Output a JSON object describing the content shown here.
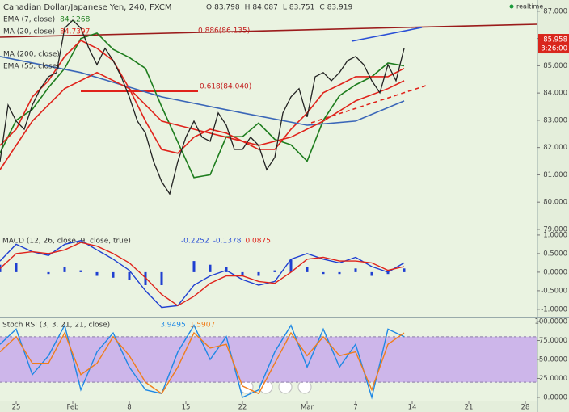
{
  "header": {
    "title": "Canadian Dollar/Japanese Yen, 240, FXCM",
    "ohlc": [
      {
        "label": "O",
        "value": 83.798
      },
      {
        "label": "H",
        "value": 84.087
      },
      {
        "label": "L",
        "value": 83.751
      },
      {
        "label": "C",
        "value": 83.919
      }
    ],
    "status": "realtime"
  },
  "chart_data": [
    {
      "type": "line",
      "xlim": [
        23,
        89.5
      ],
      "ylim": [
        78.88,
        87.41
      ],
      "yticks": [
        {
          "value": 79,
          "label": "79.000"
        },
        {
          "value": 80,
          "label": "80.000"
        },
        {
          "value": 81,
          "label": "81.000"
        },
        {
          "value": 82,
          "label": "82.000"
        },
        {
          "value": 83,
          "label": "83.000"
        },
        {
          "value": 84,
          "label": "84.000"
        },
        {
          "value": 85,
          "label": "85.000"
        },
        {
          "value": 86,
          "label": "86.000"
        },
        {
          "value": 87,
          "label": "87.000"
        }
      ],
      "color": "#222222",
      "x": [
        23,
        24,
        25,
        26,
        27,
        28,
        29,
        30,
        31,
        32,
        33,
        34,
        35,
        36,
        37,
        38,
        39,
        40,
        41,
        42,
        43,
        44,
        45,
        46,
        47,
        48,
        49,
        50,
        51,
        52,
        53,
        54,
        55,
        56,
        57,
        58,
        59,
        60,
        61,
        62,
        63,
        64,
        65,
        66,
        67,
        68,
        69,
        70,
        71,
        72,
        73
      ],
      "values": [
        81.49,
        83.56,
        82.97,
        82.67,
        83.56,
        84.16,
        84.6,
        84.75,
        86.38,
        86.67,
        86.38,
        85.64,
        85.04,
        85.64,
        85.19,
        84.6,
        83.86,
        82.97,
        82.53,
        81.49,
        80.75,
        80.3,
        81.49,
        82.38,
        82.97,
        82.38,
        82.23,
        83.27,
        82.82,
        81.93,
        81.93,
        82.38,
        82.08,
        81.19,
        81.64,
        83.27,
        83.86,
        84.16,
        83.12,
        84.6,
        84.75,
        84.45,
        84.75,
        85.19,
        85.34,
        85.04,
        84.45,
        84.01,
        85.04,
        84.45,
        85.64
      ],
      "series": [
        {
          "name": "EMA (7, close)",
          "color": "#1e7d1e",
          "legend_value": 84.1268,
          "x": [
            23,
            25,
            27,
            29,
            31,
            33,
            35,
            37,
            39,
            41,
            43,
            45,
            47,
            49,
            51,
            53,
            55,
            57,
            59,
            61,
            63,
            65,
            67,
            69,
            71,
            73
          ],
          "values": [
            81.8,
            83.0,
            83.4,
            84.2,
            84.9,
            86.0,
            86.2,
            85.6,
            85.3,
            84.9,
            83.5,
            82.2,
            80.9,
            81.0,
            82.4,
            82.4,
            82.9,
            82.3,
            82.1,
            81.5,
            83.0,
            83.9,
            84.3,
            84.6,
            85.1,
            85.0
          ]
        },
        {
          "name": "MA (20, close)",
          "color": "#e0231b",
          "legend_value": 84.7397,
          "x": [
            23,
            25,
            27,
            29,
            31,
            33,
            35,
            37,
            39,
            41,
            43,
            45,
            47,
            49,
            51,
            53,
            55,
            57,
            59,
            61,
            63,
            65,
            67,
            69,
            71,
            73
          ],
          "values": [
            82.08,
            82.67,
            83.86,
            84.45,
            85.34,
            85.93,
            85.64,
            85.19,
            84.16,
            82.97,
            81.93,
            81.79,
            82.38,
            82.67,
            82.53,
            82.23,
            81.93,
            81.93,
            82.67,
            83.27,
            84.01,
            84.3,
            84.6,
            84.6,
            84.6,
            84.9
          ]
        },
        {
          "name": "MA (200, close)",
          "color": "#3a66b8",
          "x": [
            23,
            33,
            43,
            53,
            61,
            67,
            73
          ],
          "values": [
            85.34,
            84.75,
            83.86,
            83.27,
            82.82,
            82.97,
            83.71
          ]
        },
        {
          "name": "EMA (55, close)",
          "color": "#e0231b",
          "x": [
            23,
            27,
            31,
            35,
            39,
            43,
            47,
            51,
            55,
            59,
            63,
            67,
            71,
            73
          ],
          "values": [
            81.19,
            82.97,
            84.16,
            84.75,
            84.16,
            82.97,
            82.67,
            82.38,
            82.08,
            82.38,
            82.97,
            83.71,
            84.16,
            84.45
          ]
        }
      ],
      "annotations": [
        "0.886(86.135)",
        "0.618(84.040)"
      ],
      "last_price": {
        "value": 85.958,
        "label": "85.958"
      },
      "countdown": "3:26:00"
    },
    {
      "type": "line",
      "title": "MACD (12, 26, close, 9, close, true)",
      "readout": [
        {
          "value": -0.2252,
          "color": "#2a4fd6"
        },
        {
          "value": -0.1378,
          "color": "#2a4fd6"
        },
        {
          "value": 0.0875,
          "color": "#e0231b"
        }
      ],
      "xlim": [
        23,
        89.5
      ],
      "ylim": [
        -1.22,
        1.02
      ],
      "yticks": [
        {
          "value": 1,
          "label": "1.0000"
        },
        {
          "value": 0.5,
          "label": "0.5000"
        },
        {
          "value": 0,
          "label": "0.0000"
        },
        {
          "value": -0.5,
          "label": "-0.5000"
        },
        {
          "value": -1,
          "label": "-1.0000"
        }
      ],
      "x": [
        23,
        25,
        27,
        29,
        31,
        33,
        35,
        37,
        39,
        41,
        43,
        45,
        47,
        49,
        51,
        53,
        55,
        57,
        59,
        61,
        63,
        65,
        67,
        69,
        71,
        73
      ],
      "series": [
        {
          "type": "bar",
          "color": "#1f3fd1",
          "values": [
            0.2,
            0.25,
            0,
            -0.05,
            0.15,
            0.05,
            -0.1,
            -0.15,
            -0.2,
            -0.35,
            -0.35,
            0,
            0.3,
            0.2,
            0.15,
            -0.1,
            -0.1,
            0.05,
            0.35,
            0.15,
            -0.05,
            -0.05,
            0.1,
            -0.1,
            -0.05,
            0.1
          ]
        },
        {
          "type": "line",
          "color": "#1f3fd1",
          "values": [
            0.3,
            0.75,
            0.55,
            0.45,
            0.75,
            0.85,
            0.6,
            0.35,
            0.05,
            -0.5,
            -0.95,
            -0.9,
            -0.35,
            -0.1,
            0.05,
            -0.2,
            -0.35,
            -0.25,
            0.35,
            0.5,
            0.35,
            0.25,
            0.4,
            0.15,
            0,
            0.25
          ]
        },
        {
          "type": "line",
          "color": "#e0231b",
          "values": [
            0.1,
            0.5,
            0.55,
            0.5,
            0.6,
            0.8,
            0.7,
            0.5,
            0.25,
            -0.15,
            -0.6,
            -0.9,
            -0.65,
            -0.3,
            -0.1,
            -0.1,
            -0.25,
            -0.3,
            0,
            0.35,
            0.4,
            0.3,
            0.3,
            0.25,
            0.05,
            0.15
          ]
        }
      ]
    },
    {
      "type": "line",
      "title": "Stoch RSI (3, 3, 21, 21, close)",
      "readout": [
        {
          "value": 3.9495,
          "color": "#1e88e5"
        },
        {
          "value": 1.5907,
          "color": "#f07d1a"
        }
      ],
      "xlim": [
        23,
        89.5
      ],
      "ylim": [
        -4.3,
        104.3
      ],
      "band": [
        20,
        80
      ],
      "yticks": [
        {
          "value": 100,
          "label": "100.0000"
        },
        {
          "value": 75,
          "label": "75.0000"
        },
        {
          "value": 50,
          "label": "50.0000"
        },
        {
          "value": 25,
          "label": "25.0000"
        },
        {
          "value": 0,
          "label": "0.0000"
        }
      ],
      "xticks": [
        {
          "value": 25,
          "label": "25"
        },
        {
          "value": 32,
          "label": "Feb"
        },
        {
          "value": 39,
          "label": "8"
        },
        {
          "value": 46,
          "label": "15"
        },
        {
          "value": 53,
          "label": "22"
        },
        {
          "value": 61,
          "label": "Mar"
        },
        {
          "value": 67,
          "label": "7"
        },
        {
          "value": 74,
          "label": "14"
        },
        {
          "value": 81,
          "label": "21"
        },
        {
          "value": 88,
          "label": "28"
        }
      ],
      "x": [
        23,
        25,
        27,
        29,
        31,
        33,
        35,
        37,
        39,
        41,
        43,
        45,
        47,
        49,
        51,
        53,
        55,
        57,
        59,
        61,
        63,
        65,
        67,
        69,
        71,
        73
      ],
      "series": [
        {
          "type": "line",
          "color": "#1e88e5",
          "values": [
            70,
            90,
            30,
            55,
            95,
            10,
            60,
            85,
            40,
            10,
            5,
            60,
            95,
            50,
            80,
            0,
            10,
            60,
            95,
            40,
            90,
            40,
            70,
            0,
            90,
            80
          ]
        },
        {
          "type": "line",
          "color": "#f07d1a",
          "values": [
            60,
            80,
            45,
            45,
            85,
            30,
            45,
            80,
            55,
            20,
            5,
            40,
            85,
            65,
            70,
            15,
            5,
            45,
            85,
            55,
            80,
            55,
            60,
            10,
            70,
            85
          ]
        }
      ]
    }
  ]
}
